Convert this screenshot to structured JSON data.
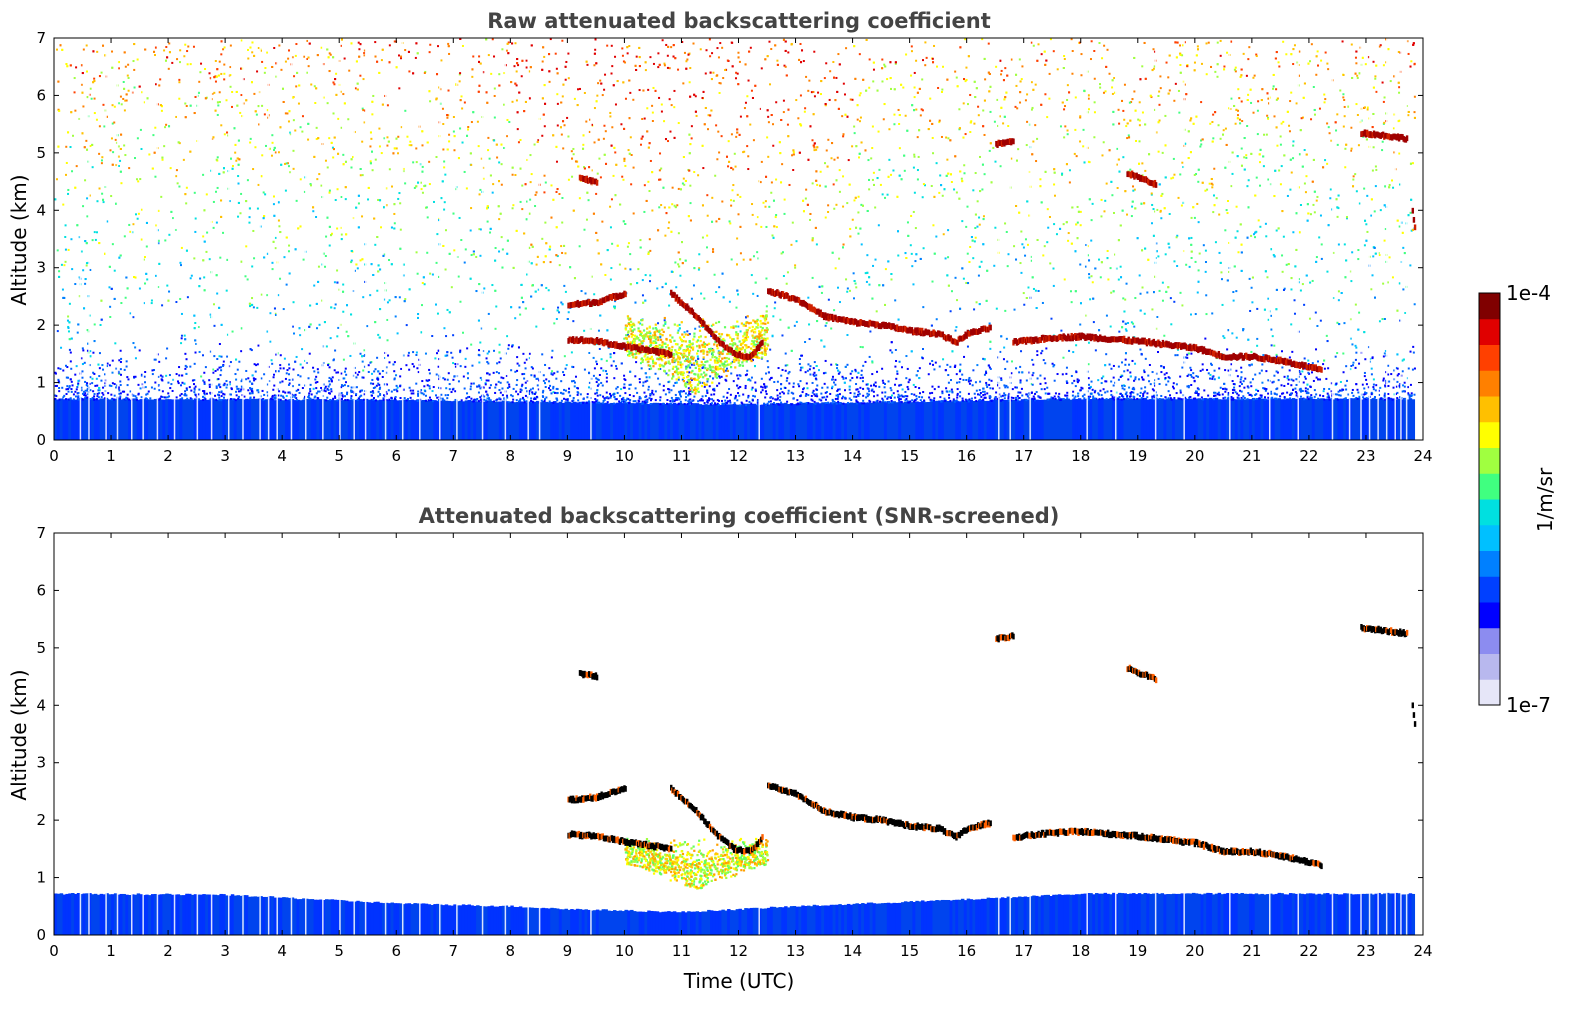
{
  "chart_data": [
    {
      "type": "heatmap",
      "title": "Raw attenuated backscattering coefficient",
      "xlabel": "",
      "ylabel": "Altitude (km)",
      "xlim": [
        0,
        24
      ],
      "ylim": [
        0,
        7
      ],
      "xticks": [
        "0",
        "1",
        "2",
        "3",
        "4",
        "5",
        "6",
        "7",
        "8",
        "9",
        "10",
        "11",
        "12",
        "13",
        "14",
        "15",
        "16",
        "17",
        "18",
        "19",
        "20",
        "21",
        "22",
        "23",
        "24"
      ],
      "yticks": [
        "0",
        "1",
        "2",
        "3",
        "4",
        "5",
        "6",
        "7"
      ],
      "noise": "background molecular signal present at all altitudes",
      "boundary_layer_top": [
        {
          "time": 0,
          "alt": 0.72
        },
        {
          "time": 6,
          "alt": 0.7
        },
        {
          "time": 12,
          "alt": 0.62
        },
        {
          "time": 18,
          "alt": 0.72
        },
        {
          "time": 23.85,
          "alt": 0.72
        }
      ],
      "cloud_layers": [
        {
          "points": [
            [
              9.0,
              2.35
            ],
            [
              9.5,
              2.4
            ],
            [
              10.0,
              2.55
            ]
          ]
        },
        {
          "points": [
            [
              9.0,
              1.75
            ],
            [
              9.5,
              1.72
            ],
            [
              10.0,
              1.62
            ],
            [
              10.5,
              1.55
            ],
            [
              10.8,
              1.5
            ]
          ]
        },
        {
          "points": [
            [
              10.8,
              2.55
            ],
            [
              11.2,
              2.2
            ],
            [
              11.6,
              1.75
            ],
            [
              11.9,
              1.5
            ],
            [
              12.2,
              1.45
            ],
            [
              12.4,
              1.7
            ]
          ]
        },
        {
          "points": [
            [
              12.5,
              2.6
            ],
            [
              13.0,
              2.45
            ],
            [
              13.5,
              2.15
            ],
            [
              14.0,
              2.05
            ],
            [
              14.5,
              2.0
            ],
            [
              15.0,
              1.9
            ],
            [
              15.5,
              1.85
            ],
            [
              15.8,
              1.7
            ],
            [
              16.0,
              1.85
            ],
            [
              16.4,
              1.95
            ]
          ]
        },
        {
          "points": [
            [
              16.8,
              1.7
            ],
            [
              17.5,
              1.78
            ],
            [
              18.0,
              1.8
            ],
            [
              19.0,
              1.72
            ],
            [
              20.0,
              1.6
            ],
            [
              20.5,
              1.45
            ],
            [
              21.0,
              1.45
            ],
            [
              21.5,
              1.38
            ],
            [
              22.2,
              1.22
            ]
          ]
        },
        {
          "points": [
            [
              9.2,
              4.55
            ],
            [
              9.5,
              4.5
            ]
          ]
        },
        {
          "points": [
            [
              16.5,
              5.15
            ],
            [
              16.8,
              5.2
            ]
          ]
        },
        {
          "points": [
            [
              18.8,
              4.65
            ],
            [
              19.3,
              4.45
            ]
          ]
        },
        {
          "points": [
            [
              22.9,
              5.35
            ],
            [
              23.3,
              5.3
            ],
            [
              23.7,
              5.25
            ]
          ]
        },
        {
          "points": [
            [
              23.8,
              4.0
            ],
            [
              23.85,
              3.6
            ]
          ]
        }
      ],
      "aerosol_plume": {
        "time_range": [
          10.0,
          12.5
        ],
        "alt_range": [
          0.8,
          2.2
        ]
      }
    },
    {
      "type": "heatmap",
      "title": "Attenuated backscattering coefficient (SNR-screened)",
      "xlabel": "Time (UTC)",
      "ylabel": "Altitude (km)",
      "xlim": [
        0,
        24
      ],
      "ylim": [
        0,
        7
      ],
      "xticks": [
        "0",
        "1",
        "2",
        "3",
        "4",
        "5",
        "6",
        "7",
        "8",
        "9",
        "10",
        "11",
        "12",
        "13",
        "14",
        "15",
        "16",
        "17",
        "18",
        "19",
        "20",
        "21",
        "22",
        "23",
        "24"
      ],
      "yticks": [
        "0",
        "1",
        "2",
        "3",
        "4",
        "5",
        "6",
        "7"
      ],
      "noise": "screened (white background)",
      "boundary_layer_top": [
        {
          "time": 0,
          "alt": 0.72
        },
        {
          "time": 3,
          "alt": 0.7
        },
        {
          "time": 6,
          "alt": 0.55
        },
        {
          "time": 8,
          "alt": 0.5
        },
        {
          "time": 9,
          "alt": 0.45
        },
        {
          "time": 11,
          "alt": 0.4
        },
        {
          "time": 13,
          "alt": 0.5
        },
        {
          "time": 16,
          "alt": 0.62
        },
        {
          "time": 18,
          "alt": 0.72
        },
        {
          "time": 23.85,
          "alt": 0.72
        }
      ],
      "cloud_layers": [
        {
          "points": [
            [
              9.0,
              2.35
            ],
            [
              9.5,
              2.4
            ],
            [
              10.0,
              2.55
            ]
          ]
        },
        {
          "points": [
            [
              9.0,
              1.75
            ],
            [
              9.5,
              1.72
            ],
            [
              10.0,
              1.62
            ],
            [
              10.5,
              1.55
            ],
            [
              10.8,
              1.5
            ]
          ]
        },
        {
          "points": [
            [
              10.8,
              2.55
            ],
            [
              11.2,
              2.2
            ],
            [
              11.6,
              1.75
            ],
            [
              11.9,
              1.5
            ],
            [
              12.2,
              1.45
            ],
            [
              12.4,
              1.7
            ]
          ]
        },
        {
          "points": [
            [
              12.5,
              2.6
            ],
            [
              13.0,
              2.45
            ],
            [
              13.5,
              2.15
            ],
            [
              14.0,
              2.05
            ],
            [
              14.5,
              2.0
            ],
            [
              15.0,
              1.9
            ],
            [
              15.5,
              1.85
            ],
            [
              15.8,
              1.7
            ],
            [
              16.0,
              1.85
            ],
            [
              16.4,
              1.95
            ]
          ]
        },
        {
          "points": [
            [
              16.8,
              1.7
            ],
            [
              17.5,
              1.78
            ],
            [
              18.0,
              1.8
            ],
            [
              19.0,
              1.72
            ],
            [
              20.0,
              1.6
            ],
            [
              20.5,
              1.45
            ],
            [
              21.0,
              1.45
            ],
            [
              21.5,
              1.38
            ],
            [
              22.2,
              1.22
            ]
          ]
        },
        {
          "points": [
            [
              9.2,
              4.55
            ],
            [
              9.5,
              4.5
            ]
          ]
        },
        {
          "points": [
            [
              16.5,
              5.15
            ],
            [
              16.8,
              5.2
            ]
          ]
        },
        {
          "points": [
            [
              18.8,
              4.65
            ],
            [
              19.3,
              4.45
            ]
          ]
        },
        {
          "points": [
            [
              22.9,
              5.35
            ],
            [
              23.3,
              5.3
            ],
            [
              23.7,
              5.25
            ]
          ]
        },
        {
          "points": [
            [
              23.8,
              4.0
            ],
            [
              23.85,
              3.6
            ]
          ]
        }
      ],
      "aerosol_plume": {
        "time_range": [
          10.0,
          12.5
        ],
        "alt_range": [
          0.8,
          1.7
        ]
      }
    }
  ],
  "colorbar": {
    "max_label": "1e-4",
    "min_label": "1e-7",
    "unit_label": "1/m/sr",
    "scale": "log",
    "colors": [
      "#e6e6f8",
      "#b8b8ee",
      "#8c8cf0",
      "#0000ff",
      "#0040ff",
      "#0080ff",
      "#00c0ff",
      "#00e0e0",
      "#40ff80",
      "#a0ff40",
      "#ffff00",
      "#ffc000",
      "#ff8000",
      "#ff4000",
      "#e00000",
      "#800000"
    ]
  }
}
